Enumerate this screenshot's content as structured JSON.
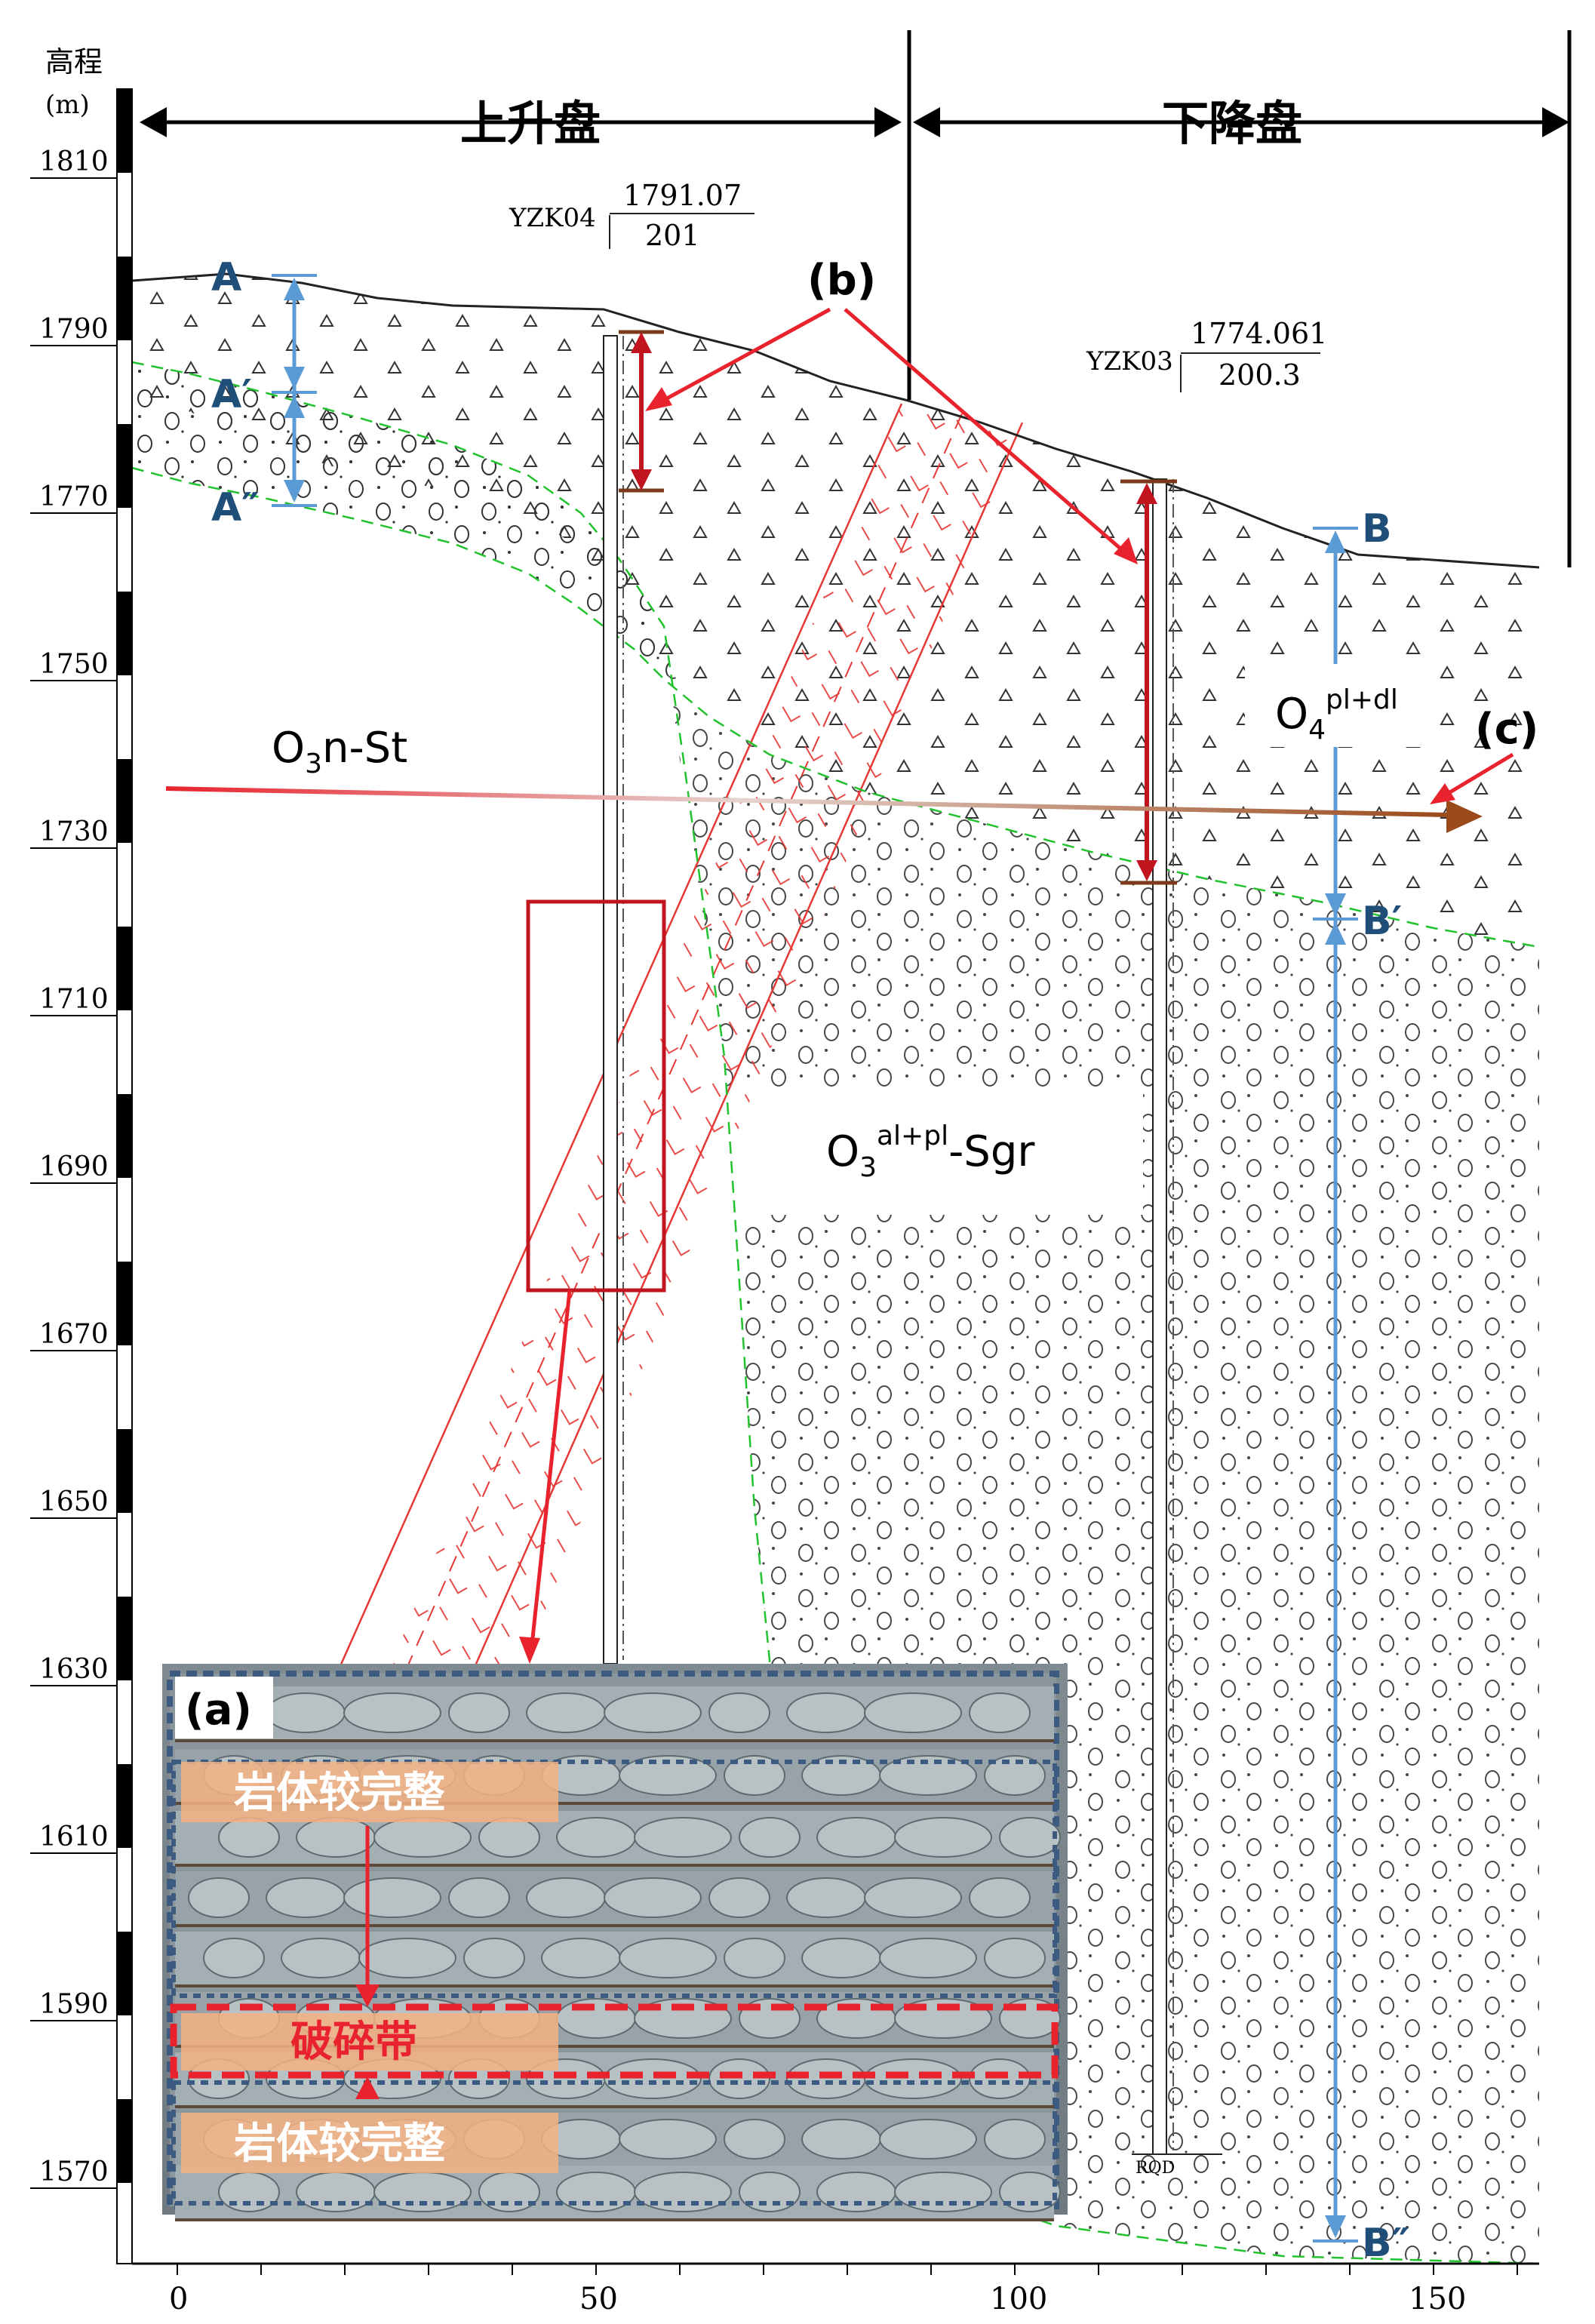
{
  "axis": {
    "y_title_line1": "高程",
    "y_title_line2": "(m)",
    "y_ticks": [
      "1810",
      "1790",
      "1770",
      "1750",
      "1730",
      "1710",
      "1690",
      "1670",
      "1650",
      "1630",
      "1610",
      "1590",
      "1570"
    ],
    "x_ticks": [
      "0",
      "50",
      "100",
      "150"
    ]
  },
  "header": {
    "upthrown": "上升盘",
    "downthrown": "下降盘"
  },
  "boreholes": {
    "yzk04": {
      "name": "YZK04",
      "elevation": "1791.07",
      "depth": "201"
    },
    "yzk03": {
      "name": "YZK03",
      "elevation": "1774.061",
      "depth": "200.3"
    }
  },
  "markers": {
    "A": "A",
    "A1": "A′",
    "A2": "A″",
    "B": "B",
    "B1": "B′",
    "B2": "B″",
    "b": "(b)",
    "c": "(c)",
    "a": "(a)"
  },
  "strata": {
    "upper": "O3n-St",
    "upper_main": "O",
    "upper_sub": "3",
    "upper_rest": "n-St",
    "middle_main": "O",
    "middle_sub": "3",
    "middle_sup": "al+pl",
    "middle_rest": "-Sgr",
    "surface_main": "O",
    "surface_sub": "4",
    "surface_sup": "pl+dl"
  },
  "photo": {
    "label_intact_top": "岩体较完整",
    "label_fracture": "破碎带",
    "label_intact_bottom": "岩体较完整"
  },
  "rqd_label": "RQD"
}
